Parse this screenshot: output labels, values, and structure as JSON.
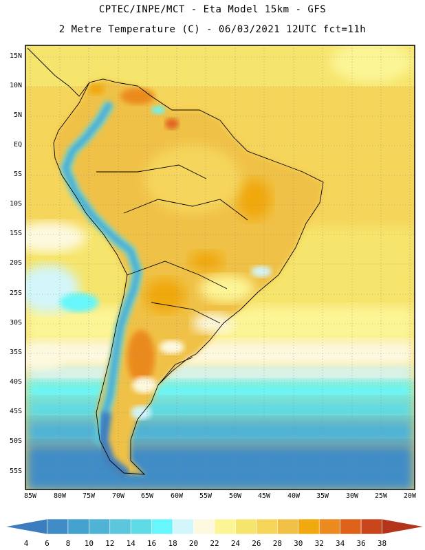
{
  "header": {
    "line1": "CPTEC/INPE/MCT -  Eta Model 15km - GFS",
    "line2": "2 Metre Temperature (C) - 06/03/2021 12UTC fct=11h"
  },
  "axes": {
    "lat_labels": [
      "15N",
      "10N",
      "5N",
      "EQ",
      "5S",
      "10S",
      "15S",
      "20S",
      "25S",
      "30S",
      "35S",
      "40S",
      "45S",
      "50S",
      "55S"
    ],
    "lon_labels": [
      "85W",
      "80W",
      "75W",
      "70W",
      "65W",
      "60W",
      "55W",
      "50W",
      "45W",
      "40W",
      "35W",
      "30W",
      "25W",
      "20W"
    ]
  },
  "colorbar": {
    "labels": [
      "4",
      "6",
      "8",
      "10",
      "12",
      "14",
      "16",
      "18",
      "20",
      "22",
      "24",
      "26",
      "28",
      "30",
      "32",
      "34",
      "36",
      "38"
    ],
    "colors": [
      "#3c7dbf",
      "#3f8cc6",
      "#45a1ce",
      "#4fb3d6",
      "#5bc6dc",
      "#5fdbe6",
      "#66f6fb",
      "#d2f6fa",
      "#fdf9e0",
      "#fcf596",
      "#f6e56c",
      "#f6d55b",
      "#f0c146",
      "#f0a90f",
      "#eb8a1e",
      "#df621a",
      "#c9461d",
      "#b43419"
    ]
  },
  "chart_data": {
    "type": "heatmap",
    "title": "2 Metre Temperature (C) - 06/03/2021 12UTC fct=11h",
    "lat_range": [
      -58,
      17
    ],
    "lon_range": [
      -86,
      -20
    ],
    "scale_min": 4,
    "scale_max": 38
  }
}
